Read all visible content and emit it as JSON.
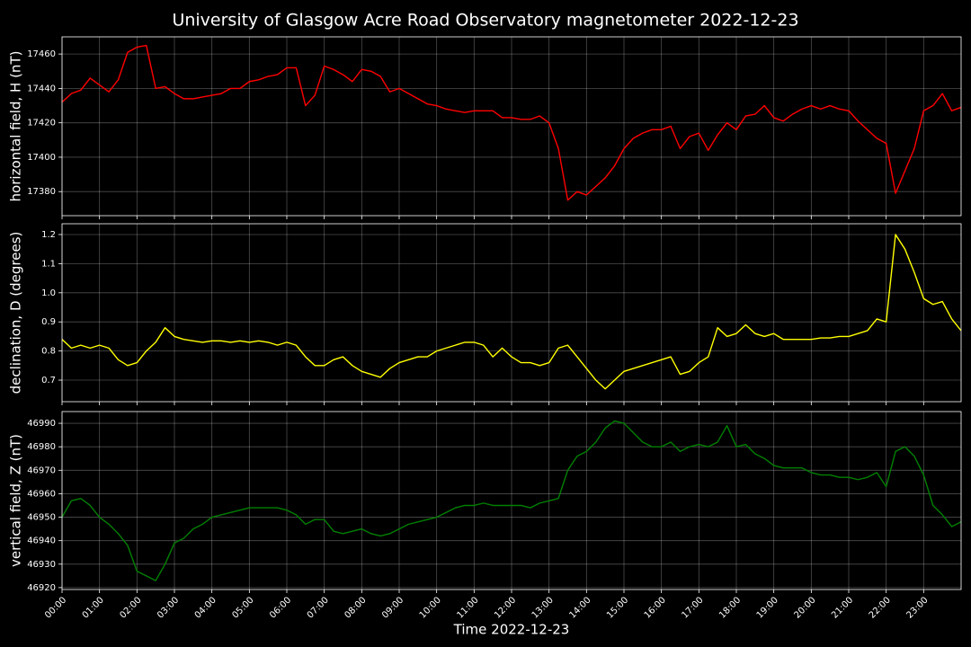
{
  "chart_data": {
    "type": "line",
    "title": "University of Glasgow Acre Road Observatory magnetometer 2022-12-23",
    "xlabel": "Time 2022-12-23",
    "x": [
      0,
      0.25,
      0.5,
      0.75,
      1,
      1.25,
      1.5,
      1.75,
      2,
      2.25,
      2.5,
      2.75,
      3,
      3.25,
      3.5,
      3.75,
      4,
      4.25,
      4.5,
      4.75,
      5,
      5.25,
      5.5,
      5.75,
      6,
      6.25,
      6.5,
      6.75,
      7,
      7.25,
      7.5,
      7.75,
      8,
      8.25,
      8.5,
      8.75,
      9,
      9.25,
      9.5,
      9.75,
      10,
      10.25,
      10.5,
      10.75,
      11,
      11.25,
      11.5,
      11.75,
      12,
      12.25,
      12.5,
      12.75,
      13,
      13.25,
      13.5,
      13.75,
      14,
      14.25,
      14.5,
      14.75,
      15,
      15.25,
      15.5,
      15.75,
      16,
      16.25,
      16.5,
      16.75,
      17,
      17.25,
      17.5,
      17.75,
      18,
      18.25,
      18.5,
      18.75,
      19,
      19.25,
      19.5,
      19.75,
      20,
      20.25,
      20.5,
      20.75,
      21,
      21.25,
      21.5,
      21.75,
      22,
      22.25,
      22.5,
      22.75,
      23,
      23.25,
      23.5,
      23.75,
      24
    ],
    "xlim": [
      0,
      24
    ],
    "xticks": [
      {
        "value": 0,
        "label": "00:00"
      },
      {
        "value": 1,
        "label": "01:00"
      },
      {
        "value": 2,
        "label": "02:00"
      },
      {
        "value": 3,
        "label": "03:00"
      },
      {
        "value": 4,
        "label": "04:00"
      },
      {
        "value": 5,
        "label": "05:00"
      },
      {
        "value": 6,
        "label": "06:00"
      },
      {
        "value": 7,
        "label": "07:00"
      },
      {
        "value": 8,
        "label": "08:00"
      },
      {
        "value": 9,
        "label": "09:00"
      },
      {
        "value": 10,
        "label": "10:00"
      },
      {
        "value": 11,
        "label": "11:00"
      },
      {
        "value": 12,
        "label": "12:00"
      },
      {
        "value": 13,
        "label": "13:00"
      },
      {
        "value": 14,
        "label": "14:00"
      },
      {
        "value": 15,
        "label": "15:00"
      },
      {
        "value": 16,
        "label": "16:00"
      },
      {
        "value": 17,
        "label": "17:00"
      },
      {
        "value": 18,
        "label": "18:00"
      },
      {
        "value": 19,
        "label": "19:00"
      },
      {
        "value": 20,
        "label": "20:00"
      },
      {
        "value": 21,
        "label": "21:00"
      },
      {
        "value": 22,
        "label": "22:00"
      },
      {
        "value": 23,
        "label": "23:00"
      }
    ],
    "grid": true,
    "panels": [
      {
        "ylabel": "horizontal field, H (nT)",
        "ylim": [
          17366,
          17470
        ],
        "yticks": [
          17380,
          17400,
          17420,
          17440,
          17460
        ],
        "series": [
          {
            "color": "#ff0000",
            "values": [
              17432,
              17437,
              17439,
              17446,
              17442,
              17438,
              17445,
              17461,
              17464,
              17465,
              17440,
              17441,
              17437,
              17434,
              17434,
              17435,
              17436,
              17437,
              17440,
              17440,
              17444,
              17445,
              17447,
              17448,
              17452,
              17452,
              17430,
              17436,
              17453,
              17451,
              17448,
              17444,
              17451,
              17450,
              17447,
              17438,
              17440,
              17437,
              17434,
              17431,
              17430,
              17428,
              17427,
              17426,
              17427,
              17427,
              17427,
              17423,
              17423,
              17422,
              17422,
              17424,
              17420,
              17405,
              17375,
              17380,
              17378,
              17383,
              17388,
              17395,
              17405,
              17411,
              17414,
              17416,
              17416,
              17418,
              17405,
              17412,
              17414,
              17404,
              17413,
              17420,
              17416,
              17424,
              17425,
              17430,
              17423,
              17421,
              17425,
              17428,
              17430,
              17428,
              17430,
              17428,
              17427,
              17421,
              17416,
              17411,
              17408,
              17379,
              17392,
              17405,
              17427,
              17430,
              17437,
              17427,
              17429
            ]
          }
        ]
      },
      {
        "ylabel": "declination, D (degrees)",
        "ylim": [
          0.626,
          1.237
        ],
        "yticks": [
          0.7,
          0.8,
          0.9,
          {
            "value": 1,
            "label": "1.0"
          },
          1.1,
          1.2
        ],
        "series": [
          {
            "color": "#ffff00",
            "values": [
              0.84,
              0.81,
              0.82,
              0.81,
              0.82,
              0.81,
              0.77,
              0.75,
              0.76,
              0.8,
              0.83,
              0.88,
              0.85,
              0.84,
              0.835,
              0.83,
              0.835,
              0.835,
              0.83,
              0.835,
              0.83,
              0.835,
              0.83,
              0.82,
              0.83,
              0.82,
              0.78,
              0.75,
              0.75,
              0.77,
              0.78,
              0.75,
              0.73,
              0.72,
              0.71,
              0.74,
              0.76,
              0.77,
              0.78,
              0.78,
              0.8,
              0.81,
              0.82,
              0.83,
              0.83,
              0.82,
              0.78,
              0.81,
              0.78,
              0.76,
              0.76,
              0.75,
              0.76,
              0.81,
              0.82,
              0.78,
              0.74,
              0.7,
              0.67,
              0.7,
              0.73,
              0.74,
              0.75,
              0.76,
              0.77,
              0.78,
              0.72,
              0.73,
              0.76,
              0.78,
              0.88,
              0.85,
              0.86,
              0.89,
              0.86,
              0.85,
              0.86,
              0.84,
              0.84,
              0.84,
              0.84,
              0.845,
              0.845,
              0.85,
              0.85,
              0.86,
              0.87,
              0.91,
              0.9,
              1.2,
              1.15,
              1.07,
              0.98,
              0.96,
              0.97,
              0.91,
              0.87
            ]
          }
        ]
      },
      {
        "ylabel": "vertical field, Z (nT)",
        "ylim": [
          46919.2,
          46995
        ],
        "yticks": [
          46920,
          46930,
          46940,
          46950,
          46960,
          46970,
          46980,
          46990
        ],
        "series": [
          {
            "color": "#008000",
            "values": [
              46950,
              46957,
              46958,
              46955,
              46950,
              46947,
              46943,
              46938,
              46927,
              46925,
              46923,
              46930,
              46939,
              46941,
              46945,
              46947,
              46950,
              46951,
              46952,
              46953,
              46954,
              46954,
              46954,
              46954,
              46953,
              46951,
              46947,
              46949,
              46949,
              46944,
              46943,
              46944,
              46945,
              46943,
              46942,
              46943,
              46945,
              46947,
              46948,
              46949,
              46950,
              46952,
              46954,
              46955,
              46955,
              46956,
              46955,
              46955,
              46955,
              46955,
              46954,
              46956,
              46957,
              46958,
              46970,
              46976,
              46978,
              46982,
              46988,
              46991,
              46990,
              46986,
              46982,
              46980,
              46980,
              46982,
              46978,
              46980,
              46981,
              46980,
              46982,
              46989,
              46980,
              46981,
              46977,
              46975,
              46972,
              46971,
              46971,
              46971,
              46969,
              46968,
              46968,
              46967,
              46967,
              46966,
              46967,
              46969,
              46963,
              46978,
              46980,
              46976,
              46968,
              46955,
              46951,
              46946,
              46948
            ]
          }
        ]
      }
    ]
  }
}
